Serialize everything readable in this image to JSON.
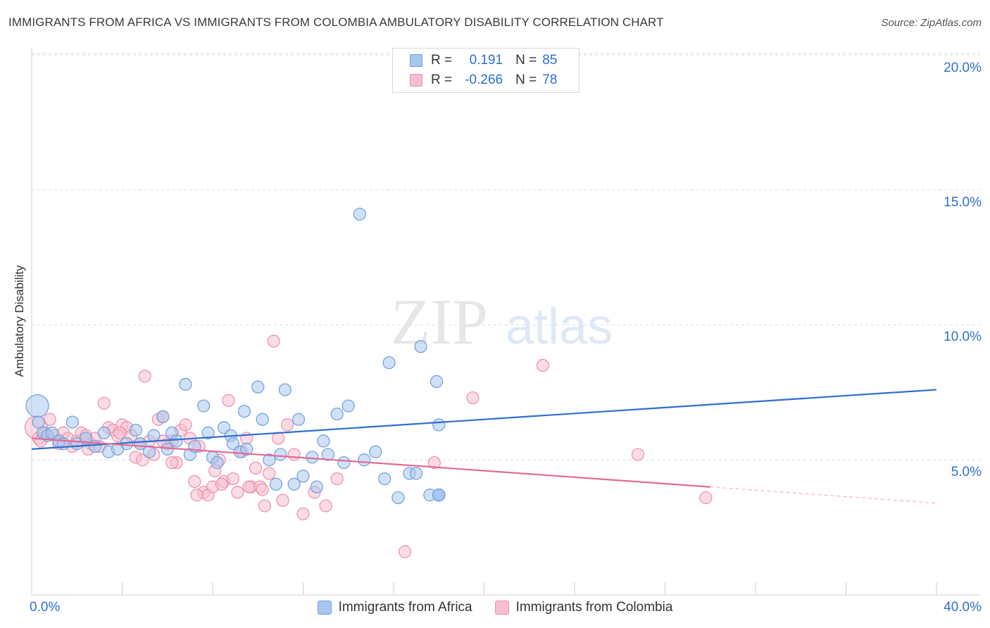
{
  "header": {
    "title": "IMMIGRANTS FROM AFRICA VS IMMIGRANTS FROM COLOMBIA AMBULATORY DISABILITY CORRELATION CHART",
    "source": "Source: ZipAtlas.com"
  },
  "legend": {
    "series1": {
      "r_label": "R =",
      "r_value": "0.191",
      "n_label": "N =",
      "n_value": "85"
    },
    "series2": {
      "r_label": "R =",
      "r_value": "-0.266",
      "n_label": "N =",
      "n_value": "78"
    }
  },
  "colors": {
    "africa_fill": "#a9c6ee",
    "africa_stroke": "#6f9fdc",
    "africa_line": "#2e6fd0",
    "colombia_fill": "#f7bfd0",
    "colombia_stroke": "#eb8fab",
    "colombia_line": "#e46a93",
    "tick_text": "#2e6fd0",
    "grid": "#dcdcdc"
  },
  "watermark": {
    "zip": "ZIP",
    "atlas": "atlas"
  },
  "chart_data": {
    "type": "scatter",
    "title": "IMMIGRANTS FROM AFRICA VS IMMIGRANTS FROM COLOMBIA AMBULATORY DISABILITY CORRELATION CHART",
    "xlabel": "",
    "ylabel": "Ambulatory Disability",
    "xlim": [
      0,
      40
    ],
    "ylim": [
      0,
      20
    ],
    "x_tick_labels": [
      "0.0%",
      "40.0%"
    ],
    "y_ticks": [
      5,
      10,
      15,
      20
    ],
    "y_tick_labels": [
      "5.0%",
      "10.0%",
      "15.0%",
      "20.0%"
    ],
    "grid": true,
    "legend_position": "top-center",
    "series": [
      {
        "name": "Immigrants from Africa",
        "r": 0.191,
        "n": 85,
        "trend": {
          "x": [
            0,
            40
          ],
          "y": [
            5.4,
            7.6
          ]
        },
        "points": [
          [
            0.25,
            7.0
          ],
          [
            0.3,
            6.4
          ],
          [
            0.5,
            6.0
          ],
          [
            0.7,
            5.9
          ],
          [
            0.9,
            6.0
          ],
          [
            1.2,
            5.7
          ],
          [
            1.4,
            5.6
          ],
          [
            1.8,
            6.4
          ],
          [
            2.0,
            5.6
          ],
          [
            2.4,
            5.8
          ],
          [
            2.8,
            5.5
          ],
          [
            3.2,
            6.0
          ],
          [
            3.4,
            5.3
          ],
          [
            3.8,
            5.4
          ],
          [
            4.2,
            5.6
          ],
          [
            4.6,
            6.1
          ],
          [
            4.8,
            5.6
          ],
          [
            5.2,
            5.3
          ],
          [
            5.4,
            5.9
          ],
          [
            5.8,
            6.6
          ],
          [
            6.0,
            5.4
          ],
          [
            6.2,
            6.0
          ],
          [
            6.4,
            5.7
          ],
          [
            6.8,
            7.8
          ],
          [
            7.0,
            5.2
          ],
          [
            7.2,
            5.5
          ],
          [
            7.6,
            7.0
          ],
          [
            7.8,
            6.0
          ],
          [
            8.0,
            5.1
          ],
          [
            8.2,
            4.9
          ],
          [
            8.5,
            6.2
          ],
          [
            8.8,
            5.9
          ],
          [
            8.9,
            5.6
          ],
          [
            9.2,
            5.3
          ],
          [
            9.4,
            6.8
          ],
          [
            9.5,
            5.4
          ],
          [
            10.0,
            7.7
          ],
          [
            10.2,
            6.5
          ],
          [
            10.5,
            5.0
          ],
          [
            10.8,
            4.1
          ],
          [
            11.0,
            5.2
          ],
          [
            11.2,
            7.6
          ],
          [
            11.6,
            4.1
          ],
          [
            11.8,
            6.5
          ],
          [
            12.0,
            4.4
          ],
          [
            12.4,
            5.1
          ],
          [
            12.6,
            4.0
          ],
          [
            12.9,
            5.7
          ],
          [
            13.1,
            5.2
          ],
          [
            13.5,
            6.7
          ],
          [
            13.8,
            4.9
          ],
          [
            14.0,
            7.0
          ],
          [
            14.5,
            14.1
          ],
          [
            14.7,
            5.0
          ],
          [
            15.2,
            5.3
          ],
          [
            15.6,
            4.3
          ],
          [
            15.8,
            8.6
          ],
          [
            16.2,
            3.6
          ],
          [
            16.7,
            4.5
          ],
          [
            17.0,
            4.5
          ],
          [
            17.2,
            9.2
          ],
          [
            17.6,
            3.7
          ],
          [
            17.9,
            7.9
          ],
          [
            18.0,
            6.3
          ],
          [
            18.0,
            3.7
          ],
          [
            18.0,
            3.7
          ],
          [
            18.0,
            3.7
          ],
          [
            18.0,
            3.7
          ],
          [
            18.0,
            3.7
          ],
          [
            18.0,
            3.7
          ],
          [
            18.0,
            3.7
          ],
          [
            18.0,
            3.7
          ],
          [
            18.0,
            3.7
          ],
          [
            18.0,
            3.7
          ],
          [
            18.0,
            3.7
          ],
          [
            18.0,
            3.7
          ],
          [
            18.0,
            3.7
          ],
          [
            18.0,
            3.7
          ],
          [
            18.0,
            3.7
          ],
          [
            18.0,
            3.7
          ],
          [
            18.0,
            3.7
          ],
          [
            18.0,
            3.7
          ],
          [
            18.0,
            3.7
          ],
          [
            18.0,
            3.7
          ],
          [
            18.0,
            3.7
          ]
        ]
      },
      {
        "name": "Immigrants from Colombia",
        "r": -0.266,
        "n": 78,
        "trend": {
          "x": [
            0,
            30
          ],
          "y": [
            5.8,
            4.0
          ]
        },
        "trend_dashed": {
          "x": [
            30,
            40
          ],
          "y": [
            4.0,
            3.4
          ]
        },
        "points": [
          [
            0.2,
            6.2
          ],
          [
            0.3,
            5.8
          ],
          [
            0.4,
            5.7
          ],
          [
            0.6,
            6.0
          ],
          [
            0.8,
            6.5
          ],
          [
            1.0,
            5.9
          ],
          [
            1.2,
            5.6
          ],
          [
            1.4,
            6.0
          ],
          [
            1.6,
            5.8
          ],
          [
            1.8,
            5.5
          ],
          [
            2.0,
            5.7
          ],
          [
            2.2,
            6.0
          ],
          [
            2.4,
            5.9
          ],
          [
            2.6,
            5.6
          ],
          [
            2.8,
            5.8
          ],
          [
            3.0,
            5.5
          ],
          [
            3.2,
            7.1
          ],
          [
            3.4,
            6.2
          ],
          [
            3.6,
            6.1
          ],
          [
            3.8,
            5.9
          ],
          [
            4.0,
            6.3
          ],
          [
            4.2,
            6.2
          ],
          [
            4.4,
            5.9
          ],
          [
            4.6,
            5.1
          ],
          [
            4.8,
            5.6
          ],
          [
            5.0,
            8.1
          ],
          [
            5.2,
            5.7
          ],
          [
            5.4,
            5.2
          ],
          [
            5.6,
            6.5
          ],
          [
            5.8,
            6.6
          ],
          [
            6.0,
            5.6
          ],
          [
            6.2,
            5.7
          ],
          [
            6.4,
            4.9
          ],
          [
            6.6,
            6.1
          ],
          [
            5.8,
            5.7
          ],
          [
            6.8,
            6.3
          ],
          [
            7.0,
            5.8
          ],
          [
            7.2,
            4.2
          ],
          [
            7.4,
            5.5
          ],
          [
            7.6,
            3.8
          ],
          [
            7.8,
            3.7
          ],
          [
            8.0,
            4.0
          ],
          [
            8.1,
            4.6
          ],
          [
            8.3,
            5.0
          ],
          [
            8.5,
            4.2
          ],
          [
            8.7,
            7.2
          ],
          [
            8.9,
            4.3
          ],
          [
            9.1,
            3.8
          ],
          [
            9.3,
            5.3
          ],
          [
            9.5,
            5.8
          ],
          [
            9.7,
            4.0
          ],
          [
            9.9,
            4.7
          ],
          [
            10.1,
            4.0
          ],
          [
            10.3,
            3.3
          ],
          [
            10.5,
            4.5
          ],
          [
            10.7,
            9.4
          ],
          [
            10.9,
            5.8
          ],
          [
            11.1,
            3.5
          ],
          [
            11.3,
            6.3
          ],
          [
            11.6,
            5.2
          ],
          [
            12.0,
            3.0
          ],
          [
            12.5,
            3.8
          ],
          [
            13.0,
            3.3
          ],
          [
            13.5,
            4.3
          ],
          [
            16.5,
            1.6
          ],
          [
            17.8,
            4.9
          ],
          [
            19.5,
            7.3
          ],
          [
            22.6,
            8.5
          ],
          [
            26.8,
            5.2
          ],
          [
            29.8,
            3.6
          ],
          [
            9.6,
            4.0
          ],
          [
            7.3,
            3.7
          ],
          [
            8.4,
            4.1
          ],
          [
            10.2,
            3.9
          ],
          [
            4.9,
            5.0
          ],
          [
            6.2,
            4.9
          ],
          [
            3.9,
            6.0
          ],
          [
            2.5,
            5.4
          ]
        ]
      }
    ]
  },
  "bottom_legend": {
    "africa_label": "Immigrants from Africa",
    "colombia_label": "Immigrants from Colombia"
  },
  "axes": {
    "x_min_label": "0.0%",
    "x_max_label": "40.0%",
    "y_labels": [
      "20.0%",
      "15.0%",
      "10.0%",
      "5.0%"
    ],
    "ylabel": "Ambulatory Disability"
  }
}
